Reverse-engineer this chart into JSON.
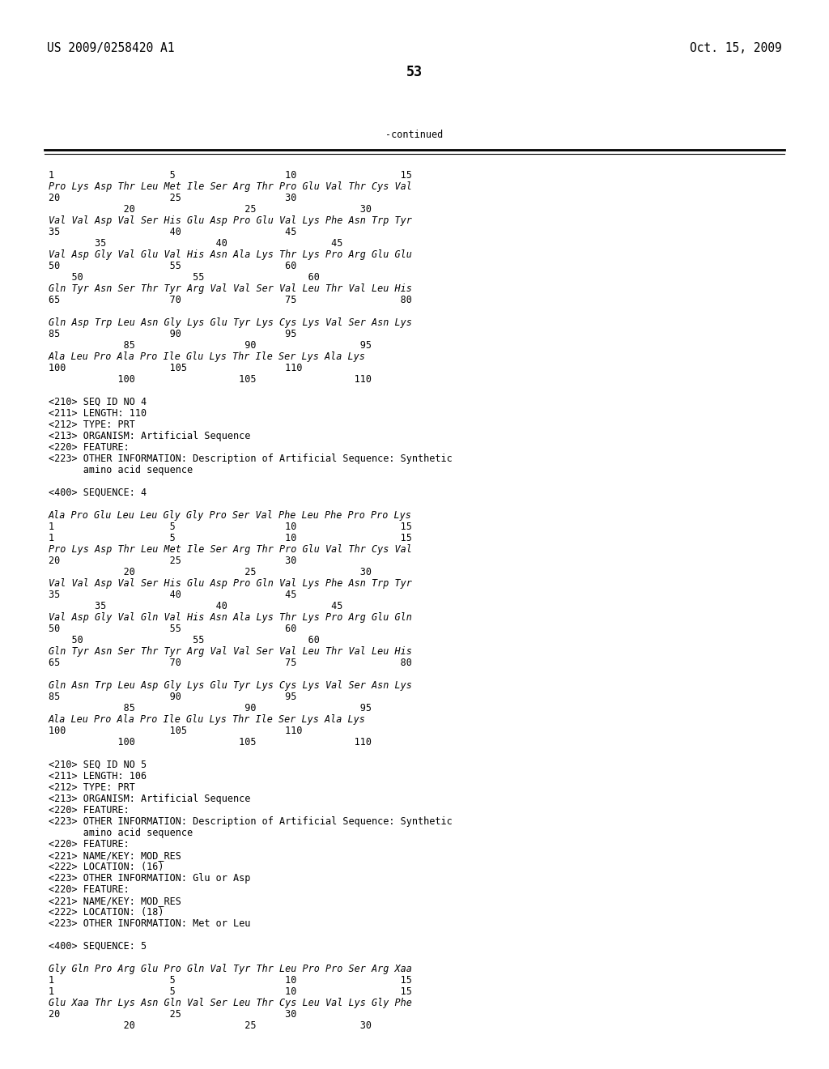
{
  "bg_color": "#ffffff",
  "header_left": "US 2009/0258420 A1",
  "header_right": "Oct. 15, 2009",
  "page_number": "53",
  "continued_label": "-continued",
  "font_size_header": 10.5,
  "font_size_body": 8.5,
  "font_size_page": 12,
  "figsize": [
    10.24,
    13.2
  ],
  "dpi": 100,
  "lines": [
    [
      60,
      210,
      "1                    5                   10                  15",
      "normal"
    ],
    [
      60,
      224,
      "Pro Lys Asp Thr Leu Met Ile Ser Arg Thr Pro Glu Val Thr Cys Val",
      "italic"
    ],
    [
      60,
      238,
      "20                   25                  30",
      "normal"
    ],
    [
      60,
      252,
      "             20                   25                  30",
      "normal"
    ],
    [
      60,
      266,
      "Val Val Asp Val Ser His Glu Asp Pro Glu Val Lys Phe Asn Trp Tyr",
      "italic"
    ],
    [
      60,
      280,
      "35                   40                  45",
      "normal"
    ],
    [
      60,
      294,
      "        35                   40                  45",
      "normal"
    ],
    [
      60,
      308,
      "Val Asp Gly Val Glu Val His Asn Ala Lys Thr Lys Pro Arg Glu Glu",
      "italic"
    ],
    [
      60,
      322,
      "50                   55                  60",
      "normal"
    ],
    [
      60,
      336,
      "    50                   55                  60",
      "normal"
    ],
    [
      60,
      350,
      "Gln Tyr Asn Ser Thr Tyr Arg Val Val Ser Val Leu Thr Val Leu His",
      "italic"
    ],
    [
      60,
      364,
      "65                   70                  75                  80",
      "normal"
    ],
    [
      60,
      392,
      "Gln Asp Trp Leu Asn Gly Lys Glu Tyr Lys Cys Lys Val Ser Asn Lys",
      "italic"
    ],
    [
      60,
      406,
      "85                   90                  95",
      "normal"
    ],
    [
      60,
      420,
      "             85                   90                  95",
      "normal"
    ],
    [
      60,
      434,
      "Ala Leu Pro Ala Pro Ile Glu Lys Thr Ile Ser Lys Ala Lys",
      "italic"
    ],
    [
      60,
      448,
      "100                  105                 110",
      "normal"
    ],
    [
      60,
      462,
      "            100                  105                 110",
      "normal"
    ],
    [
      60,
      490,
      "<210> SEQ ID NO 4",
      "normal"
    ],
    [
      60,
      504,
      "<211> LENGTH: 110",
      "normal"
    ],
    [
      60,
      518,
      "<212> TYPE: PRT",
      "normal"
    ],
    [
      60,
      532,
      "<213> ORGANISM: Artificial Sequence",
      "normal"
    ],
    [
      60,
      546,
      "<220> FEATURE:",
      "normal"
    ],
    [
      60,
      560,
      "<223> OTHER INFORMATION: Description of Artificial Sequence: Synthetic",
      "normal"
    ],
    [
      60,
      574,
      "      amino acid sequence",
      "normal"
    ],
    [
      60,
      602,
      "<400> SEQUENCE: 4",
      "normal"
    ],
    [
      60,
      630,
      "Ala Pro Glu Leu Leu Gly Gly Pro Ser Val Phe Leu Phe Pro Pro Lys",
      "italic"
    ],
    [
      60,
      644,
      "1                    5                   10                  15",
      "normal"
    ],
    [
      60,
      658,
      "1                    5                   10                  15",
      "normal"
    ],
    [
      60,
      672,
      "Pro Lys Asp Thr Leu Met Ile Ser Arg Thr Pro Glu Val Thr Cys Val",
      "italic"
    ],
    [
      60,
      686,
      "20                   25                  30",
      "normal"
    ],
    [
      60,
      700,
      "             20                   25                  30",
      "normal"
    ],
    [
      60,
      714,
      "Val Val Asp Val Ser His Glu Asp Pro Gln Val Lys Phe Asn Trp Tyr",
      "italic"
    ],
    [
      60,
      728,
      "35                   40                  45",
      "normal"
    ],
    [
      60,
      742,
      "        35                   40                  45",
      "normal"
    ],
    [
      60,
      756,
      "Val Asp Gly Val Gln Val His Asn Ala Lys Thr Lys Pro Arg Glu Gln",
      "italic"
    ],
    [
      60,
      770,
      "50                   55                  60",
      "normal"
    ],
    [
      60,
      784,
      "    50                   55                  60",
      "normal"
    ],
    [
      60,
      798,
      "Gln Tyr Asn Ser Thr Tyr Arg Val Val Ser Val Leu Thr Val Leu His",
      "italic"
    ],
    [
      60,
      812,
      "65                   70                  75                  80",
      "normal"
    ],
    [
      60,
      840,
      "Gln Asn Trp Leu Asp Gly Lys Glu Tyr Lys Cys Lys Val Ser Asn Lys",
      "italic"
    ],
    [
      60,
      854,
      "85                   90                  95",
      "normal"
    ],
    [
      60,
      868,
      "             85                   90                  95",
      "normal"
    ],
    [
      60,
      882,
      "Ala Leu Pro Ala Pro Ile Glu Lys Thr Ile Ser Lys Ala Lys",
      "italic"
    ],
    [
      60,
      896,
      "100                  105                 110",
      "normal"
    ],
    [
      60,
      910,
      "            100                  105                 110",
      "normal"
    ],
    [
      60,
      938,
      "<210> SEQ ID NO 5",
      "normal"
    ],
    [
      60,
      952,
      "<211> LENGTH: 106",
      "normal"
    ],
    [
      60,
      966,
      "<212> TYPE: PRT",
      "normal"
    ],
    [
      60,
      980,
      "<213> ORGANISM: Artificial Sequence",
      "normal"
    ],
    [
      60,
      994,
      "<220> FEATURE:",
      "normal"
    ],
    [
      60,
      1008,
      "<223> OTHER INFORMATION: Description of Artificial Sequence: Synthetic",
      "normal"
    ],
    [
      60,
      1022,
      "      amino acid sequence",
      "normal"
    ],
    [
      60,
      1036,
      "<220> FEATURE:",
      "normal"
    ],
    [
      60,
      1050,
      "<221> NAME/KEY: MOD_RES",
      "normal"
    ],
    [
      60,
      1064,
      "<222> LOCATION: (16)",
      "normal"
    ],
    [
      60,
      1078,
      "<223> OTHER INFORMATION: Glu or Asp",
      "normal"
    ],
    [
      60,
      1092,
      "<220> FEATURE:",
      "normal"
    ],
    [
      60,
      1106,
      "<221> NAME/KEY: MOD_RES",
      "normal"
    ],
    [
      60,
      1120,
      "<222> LOCATION: (18)",
      "normal"
    ],
    [
      60,
      1134,
      "<223> OTHER INFORMATION: Met or Leu",
      "normal"
    ],
    [
      60,
      1162,
      "<400> SEQUENCE: 5",
      "normal"
    ],
    [
      60,
      1190,
      "Gly Gln Pro Arg Glu Pro Gln Val Tyr Thr Leu Pro Pro Ser Arg Xaa",
      "italic"
    ],
    [
      60,
      1204,
      "1                    5                   10                  15",
      "normal"
    ],
    [
      60,
      1218,
      "1                    5                   10                  15",
      "normal"
    ],
    [
      60,
      1232,
      "Glu Xaa Thr Lys Asn Gln Val Ser Leu Thr Cys Leu Val Lys Gly Phe",
      "italic"
    ],
    [
      60,
      1246,
      "20                   25                  30",
      "normal"
    ],
    [
      60,
      1260,
      "             20                   25                  30",
      "normal"
    ]
  ]
}
